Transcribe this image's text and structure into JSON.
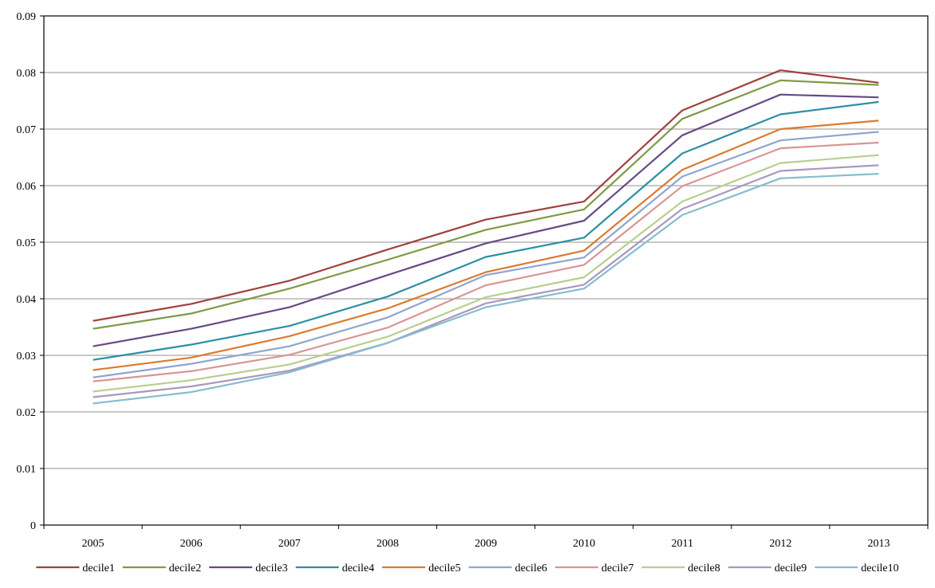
{
  "chart_data": {
    "type": "line",
    "title": "",
    "xlabel": "",
    "ylabel": "",
    "x": [
      "2005",
      "2006",
      "2007",
      "2008",
      "2009",
      "2010",
      "2011",
      "2012",
      "2013"
    ],
    "ylim": [
      0,
      0.09
    ],
    "yticks": [
      "0",
      "0.01",
      "0.02",
      "0.03",
      "0.04",
      "0.05",
      "0.06",
      "0.07",
      "0.08",
      "0.09"
    ],
    "grid": "horizontal",
    "legend_position": "bottom",
    "series": [
      {
        "name": "decile1",
        "color": "#A0413E",
        "values": [
          0.0361,
          0.0391,
          0.0432,
          0.0487,
          0.054,
          0.0572,
          0.0733,
          0.0804,
          0.0782
        ]
      },
      {
        "name": "decile2",
        "color": "#7E9A45",
        "values": [
          0.0347,
          0.0374,
          0.0418,
          0.0469,
          0.0522,
          0.0558,
          0.0718,
          0.0786,
          0.0778
        ]
      },
      {
        "name": "decile3",
        "color": "#654A84",
        "values": [
          0.0316,
          0.0347,
          0.0385,
          0.0442,
          0.0498,
          0.0538,
          0.0689,
          0.0761,
          0.0756
        ]
      },
      {
        "name": "decile4",
        "color": "#2D8FA3",
        "values": [
          0.0292,
          0.0319,
          0.0352,
          0.0404,
          0.0474,
          0.0508,
          0.0657,
          0.0726,
          0.0748
        ]
      },
      {
        "name": "decile5",
        "color": "#DC7A2E",
        "values": [
          0.0274,
          0.0296,
          0.0334,
          0.0383,
          0.0447,
          0.0485,
          0.0628,
          0.07,
          0.0715
        ]
      },
      {
        "name": "decile6",
        "color": "#8FA5CE",
        "values": [
          0.0261,
          0.0285,
          0.0316,
          0.0367,
          0.0442,
          0.0473,
          0.0616,
          0.068,
          0.0695
        ]
      },
      {
        "name": "decile7",
        "color": "#D89695",
        "values": [
          0.0254,
          0.0272,
          0.0301,
          0.0349,
          0.0424,
          0.046,
          0.0599,
          0.0666,
          0.0676
        ]
      },
      {
        "name": "decile8",
        "color": "#B7CF8E",
        "values": [
          0.0236,
          0.0256,
          0.0284,
          0.0333,
          0.0403,
          0.0438,
          0.0572,
          0.064,
          0.0654
        ]
      },
      {
        "name": "decile9",
        "color": "#A898BF",
        "values": [
          0.0226,
          0.0245,
          0.0273,
          0.0322,
          0.0392,
          0.0425,
          0.0559,
          0.0626,
          0.0636
        ]
      },
      {
        "name": "decile10",
        "color": "#86BCCF",
        "values": [
          0.0215,
          0.0235,
          0.027,
          0.0322,
          0.0385,
          0.0418,
          0.0548,
          0.0613,
          0.0621
        ]
      }
    ]
  }
}
